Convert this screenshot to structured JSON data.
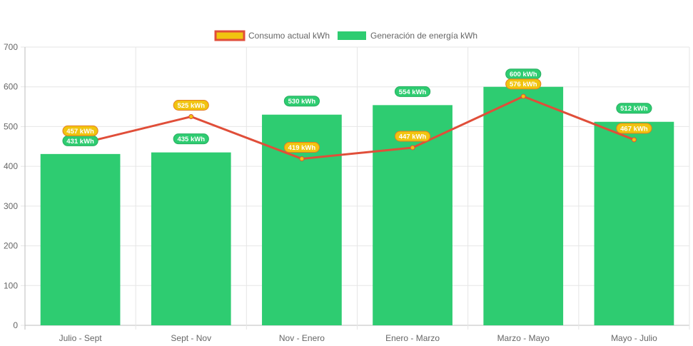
{
  "chart_data": {
    "type": "bar",
    "categories": [
      "Julio - Sept",
      "Sept - Nov",
      "Nov - Enero",
      "Enero - Marzo",
      "Marzo - Mayo",
      "Mayo - Julio"
    ],
    "series": [
      {
        "name": "Generación de energía kWh",
        "kind": "bar",
        "color": "#2ecc71",
        "values": [
          431,
          435,
          530,
          554,
          600,
          512
        ],
        "labels": [
          "431 kWh",
          "435 kWh",
          "530 kWh",
          "554 kWh",
          "600 kWh",
          "512 kWh"
        ]
      },
      {
        "name": "Consumo actual kWh",
        "kind": "line",
        "color": "#e04e39",
        "marker_color": "#f1c40f",
        "values": [
          457,
          525,
          419,
          447,
          576,
          467
        ],
        "labels": [
          "457 kWh",
          "525 kWh",
          "419 kWh",
          "447 kWh",
          "576 kWh",
          "467 kWh"
        ]
      }
    ],
    "yticks": [
      "0",
      "100",
      "200",
      "300",
      "400",
      "500",
      "600",
      "700"
    ],
    "ylim": [
      0,
      700
    ],
    "grid": true,
    "legend_position": "top-center"
  }
}
